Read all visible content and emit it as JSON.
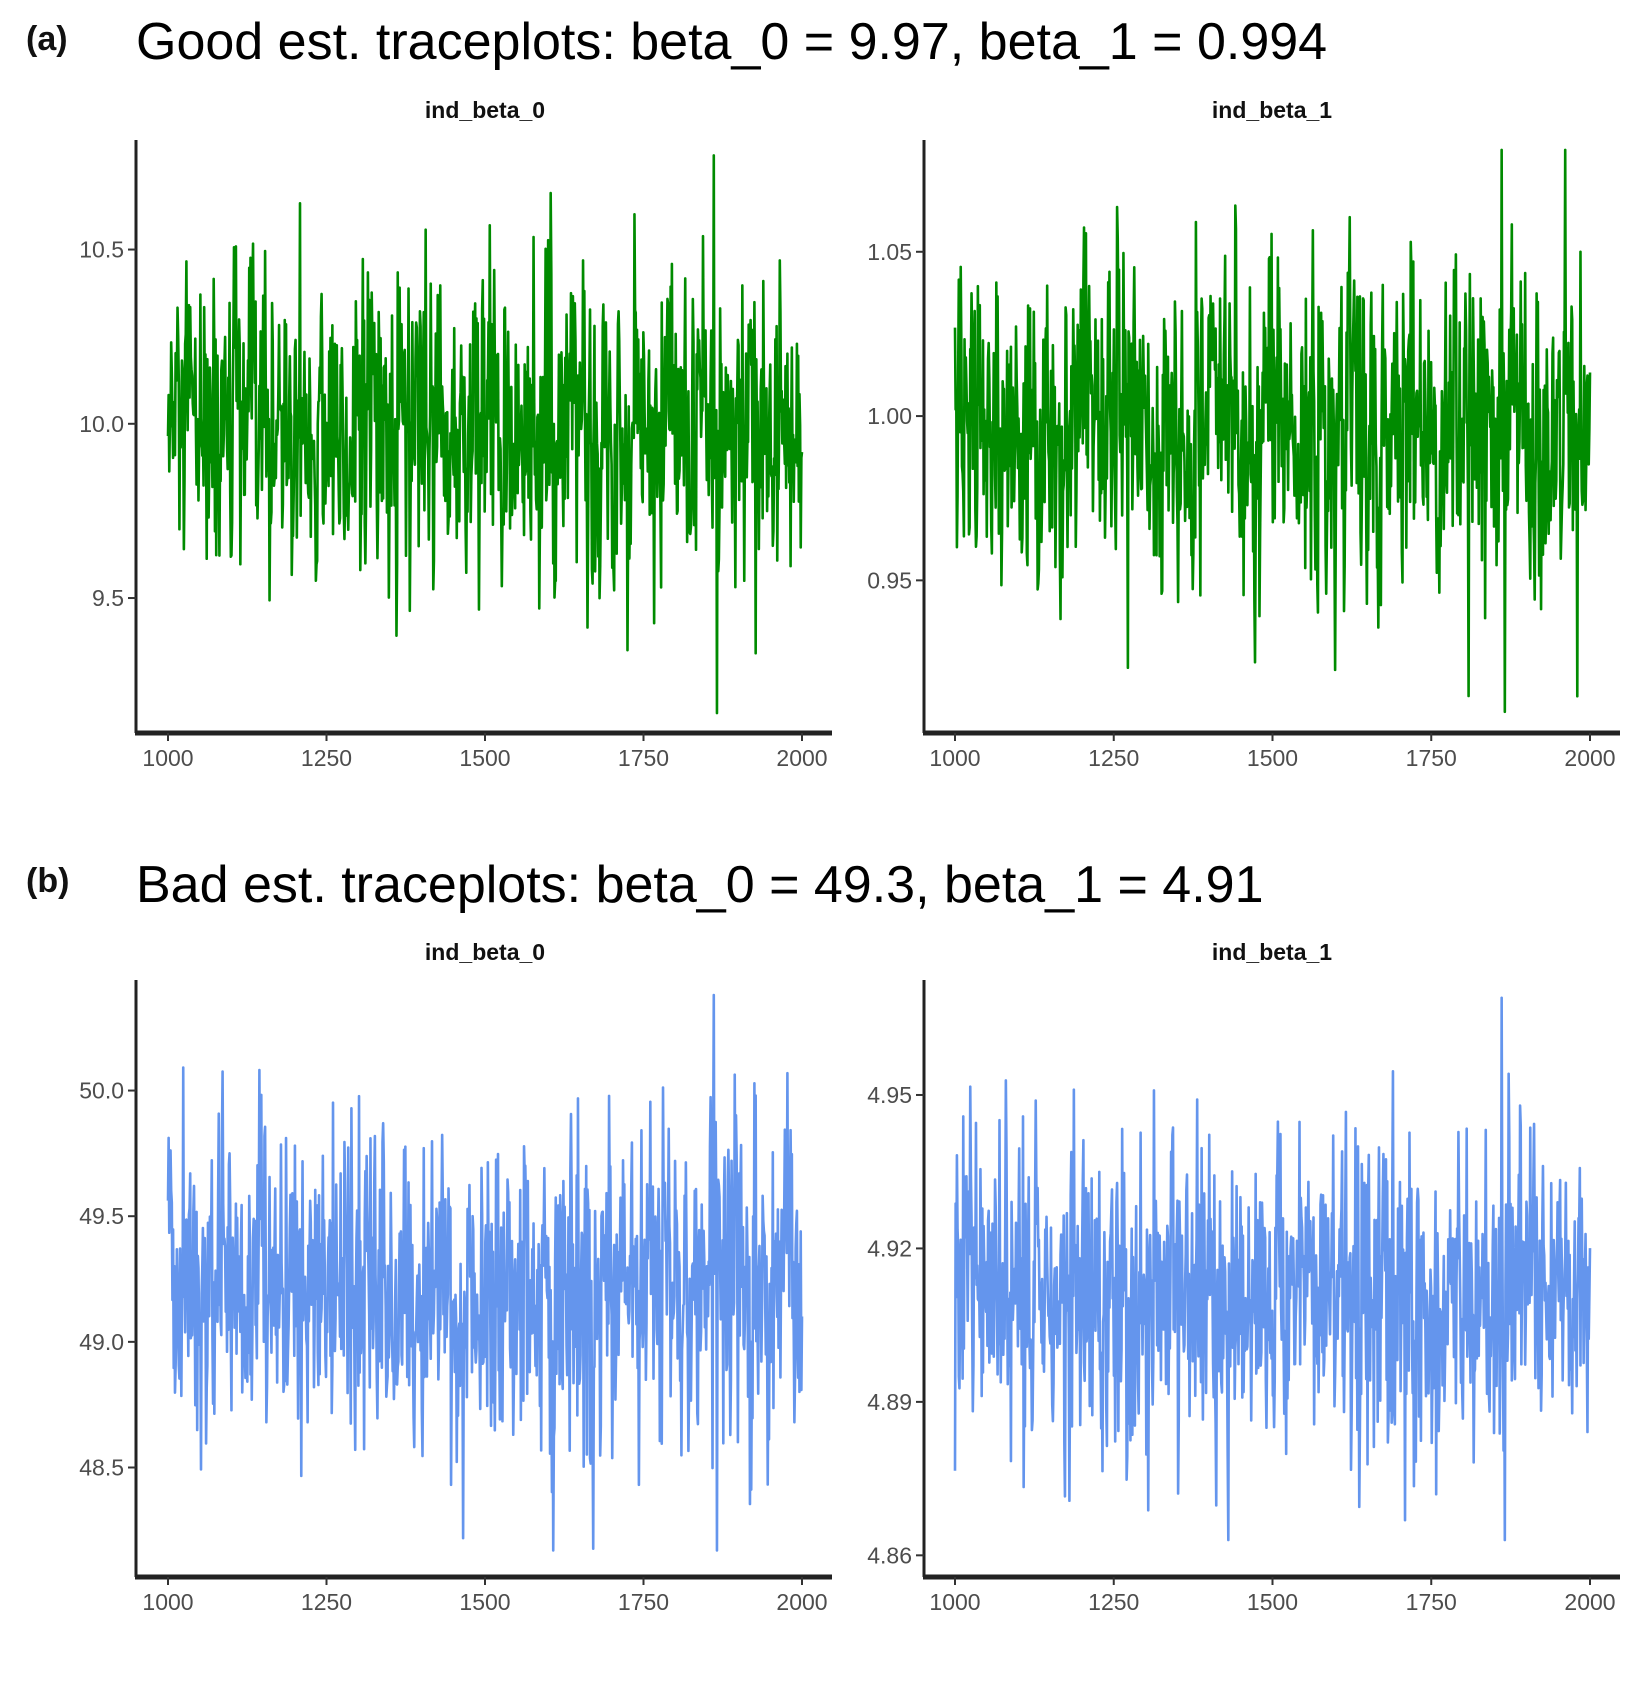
{
  "panels": [
    {
      "label": "(a)",
      "title": "Good est. traceplots: beta_0 = 9.97, beta_1 = 0.994",
      "color": "#008B00"
    },
    {
      "label": "(b)",
      "title": "Bad est. traceplots: beta_0 = 49.3, beta_1 = 4.91",
      "color": "#6495ED"
    }
  ],
  "chart_data": [
    {
      "type": "line",
      "panel": "(a)",
      "facet_title": "ind_beta_0",
      "xlim": [
        1000,
        2000
      ],
      "ylim": [
        9.15,
        10.8
      ],
      "x_ticks": [
        "1000",
        "1250",
        "1500",
        "1750",
        "2000"
      ],
      "y_ticks": [
        "9.5",
        "10.0",
        "10.5"
      ],
      "series": [
        {
          "name": "ind_beta_0",
          "color": "#008B00",
          "x_start": 1000,
          "x_end": 2000,
          "n": 1000,
          "mean": 9.98,
          "sd": 0.22,
          "min": 9.17,
          "max": 10.77
        }
      ]
    },
    {
      "type": "line",
      "panel": "(a)",
      "facet_title": "ind_beta_1",
      "xlim": [
        1000,
        2000
      ],
      "ylim": [
        0.9075,
        1.0825
      ],
      "x_ticks": [
        "1000",
        "1250",
        "1500",
        "1750",
        "2000"
      ],
      "y_ticks": [
        "0.95",
        "1.00",
        "1.05"
      ],
      "series": [
        {
          "name": "ind_beta_1",
          "color": "#008B00",
          "x_start": 1000,
          "x_end": 2000,
          "n": 1000,
          "mean": 0.998,
          "sd": 0.025,
          "min": 0.91,
          "max": 1.081
        }
      ]
    },
    {
      "type": "line",
      "panel": "(b)",
      "facet_title": "ind_beta_0",
      "xlim": [
        1000,
        2000
      ],
      "ylim": [
        48.12,
        50.42
      ],
      "x_ticks": [
        "1000",
        "1250",
        "1500",
        "1750",
        "2000"
      ],
      "y_ticks": [
        "48.5",
        "49.0",
        "49.5",
        "50.0"
      ],
      "series": [
        {
          "name": "ind_beta_0",
          "color": "#6495ED",
          "x_start": 1000,
          "x_end": 2000,
          "n": 1000,
          "mean": 49.22,
          "sd": 0.32,
          "min": 48.17,
          "max": 50.38
        }
      ]
    },
    {
      "type": "line",
      "panel": "(b)",
      "facet_title": "ind_beta_1",
      "xlim": [
        1000,
        2000
      ],
      "ylim": [
        4.8585,
        4.9715
      ],
      "x_ticks": [
        "1000",
        "1250",
        "1500",
        "1750",
        "2000"
      ],
      "y_ticks": [
        "4.86",
        "4.89",
        "4.92",
        "4.95"
      ],
      "series": [
        {
          "name": "ind_beta_1",
          "color": "#6495ED",
          "x_start": 1000,
          "x_end": 2000,
          "n": 1000,
          "mean": 4.912,
          "sd": 0.016,
          "min": 4.863,
          "max": 4.969
        }
      ]
    }
  ]
}
